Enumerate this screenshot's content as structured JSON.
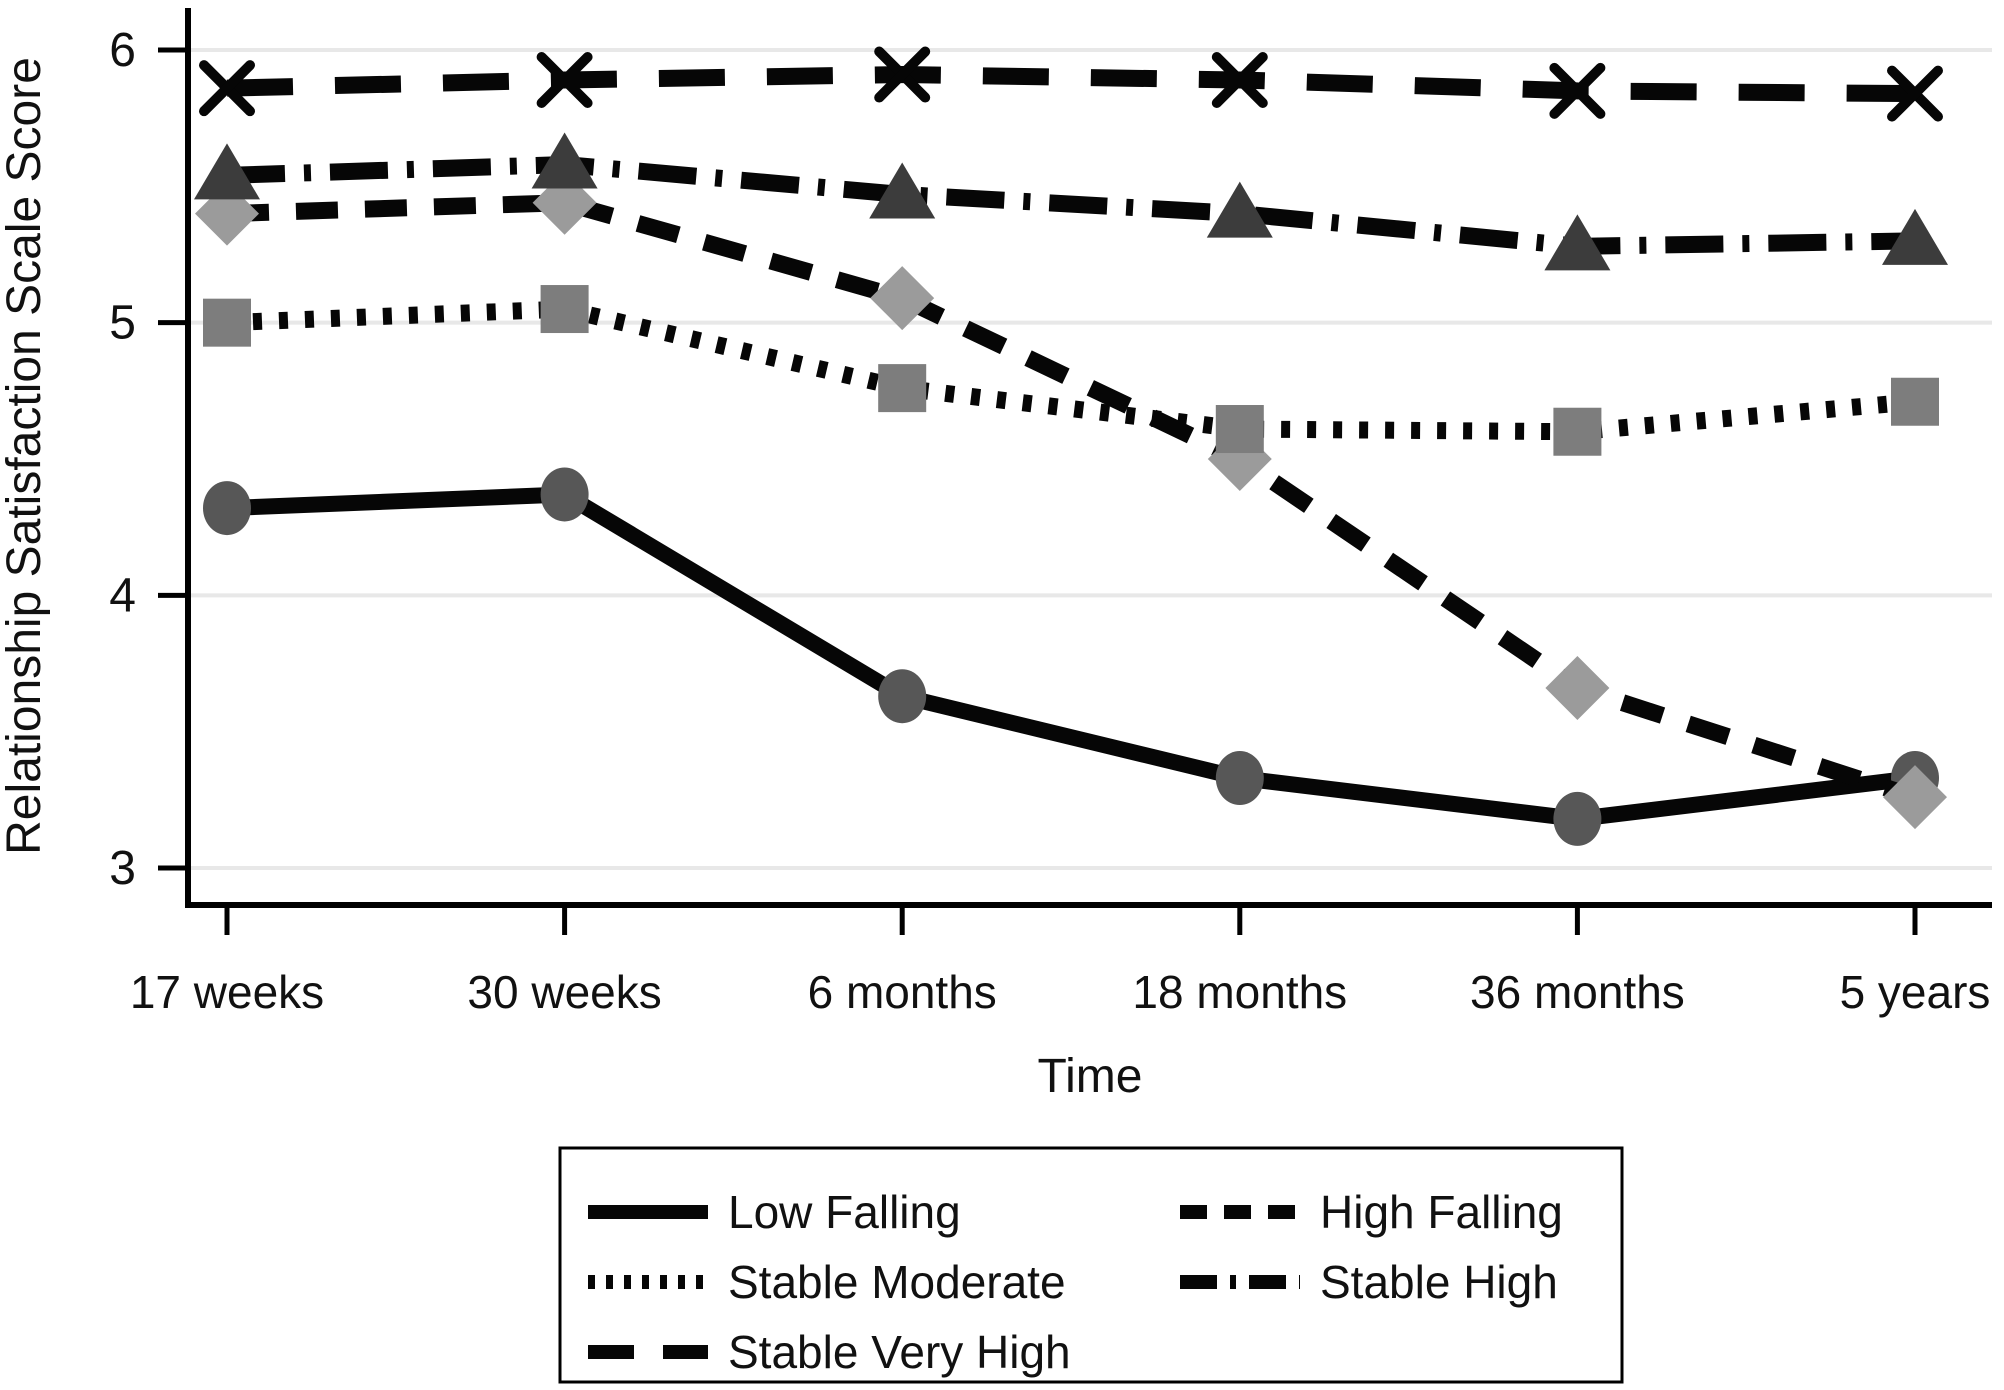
{
  "chart_data": {
    "type": "line",
    "title": "",
    "xlabel": "Time",
    "ylabel": "Relationship Satisfaction Scale Score",
    "categories": [
      "17 weeks",
      "30 weeks",
      "6 months",
      "18 months",
      "36 months",
      "5 years"
    ],
    "yticks": [
      6,
      5,
      4,
      3
    ],
    "ylim": [
      2.87,
      6.15
    ],
    "grid": true,
    "legend_position": "bottom",
    "legend_columns": 2,
    "series": [
      {
        "name": "Low Falling",
        "line": "solid",
        "marker": "circle",
        "marker_color": "#575757",
        "line_color": "#060606",
        "values": [
          4.32,
          4.37,
          3.63,
          3.33,
          3.18,
          3.33
        ]
      },
      {
        "name": "High Falling",
        "line": "dashed",
        "marker": "diamond",
        "marker_color": "#9b9b9b",
        "line_color": "#060606",
        "values": [
          5.4,
          5.44,
          5.09,
          4.5,
          3.66,
          3.26
        ]
      },
      {
        "name": "Stable Moderate",
        "line": "dotted",
        "marker": "square",
        "marker_color": "#7d7d7d",
        "line_color": "#060606",
        "values": [
          5.0,
          5.05,
          4.76,
          4.61,
          4.6,
          4.71
        ]
      },
      {
        "name": "Stable High",
        "line": "dashdot",
        "marker": "triangle",
        "marker_color": "#3c3c3c",
        "line_color": "#060606",
        "values": [
          5.54,
          5.58,
          5.47,
          5.4,
          5.28,
          5.3
        ]
      },
      {
        "name": "Stable Very High",
        "line": "longdash",
        "marker": "x",
        "marker_color": "#060606",
        "line_color": "#060606",
        "values": [
          5.86,
          5.89,
          5.91,
          5.89,
          5.85,
          5.84
        ]
      }
    ],
    "colors": {
      "axis": "#000000",
      "grid": "#e8e8e8",
      "text": "#111111",
      "background": "#ffffff",
      "legend_border": "#000000"
    }
  }
}
